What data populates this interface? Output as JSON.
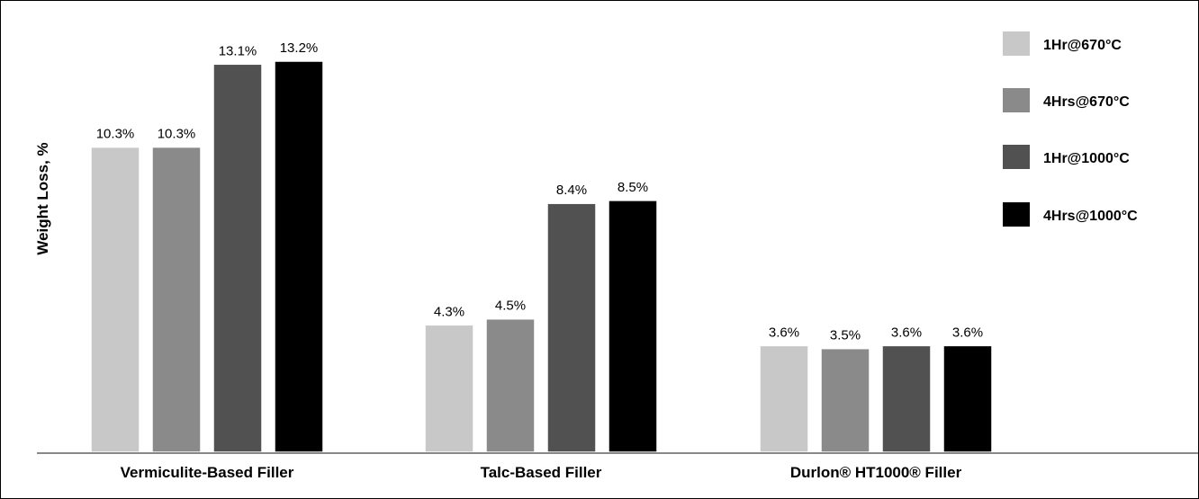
{
  "chart_data": {
    "type": "bar",
    "ylabel": "Weight Loss, %",
    "xlabel": "",
    "categories": [
      "Vermiculite-Based Filler",
      "Talc-Based Filler",
      "Durlon® HT1000® Filler"
    ],
    "series": [
      {
        "name": "1Hr@670°C",
        "color": "#c8c8c8",
        "values": [
          10.3,
          4.3,
          3.6
        ],
        "labels": [
          "10.3%",
          "4.3%",
          "3.6%"
        ]
      },
      {
        "name": "4Hrs@670°C",
        "color": "#8a8a8a",
        "values": [
          10.3,
          4.5,
          3.5
        ],
        "labels": [
          "10.3%",
          "4.5%",
          "3.5%"
        ]
      },
      {
        "name": "1Hr@1000°C",
        "color": "#515151",
        "values": [
          13.1,
          8.4,
          3.6
        ],
        "labels": [
          "13.1%",
          "8.4%",
          "3.6%"
        ]
      },
      {
        "name": "4Hrs@1000°C",
        "color": "#000000",
        "values": [
          13.2,
          8.5,
          3.6
        ],
        "labels": [
          "13.2%",
          "8.5%",
          "3.6%"
        ]
      }
    ],
    "ylim": [
      0,
      13.2
    ],
    "grid": false,
    "legend": "right"
  }
}
